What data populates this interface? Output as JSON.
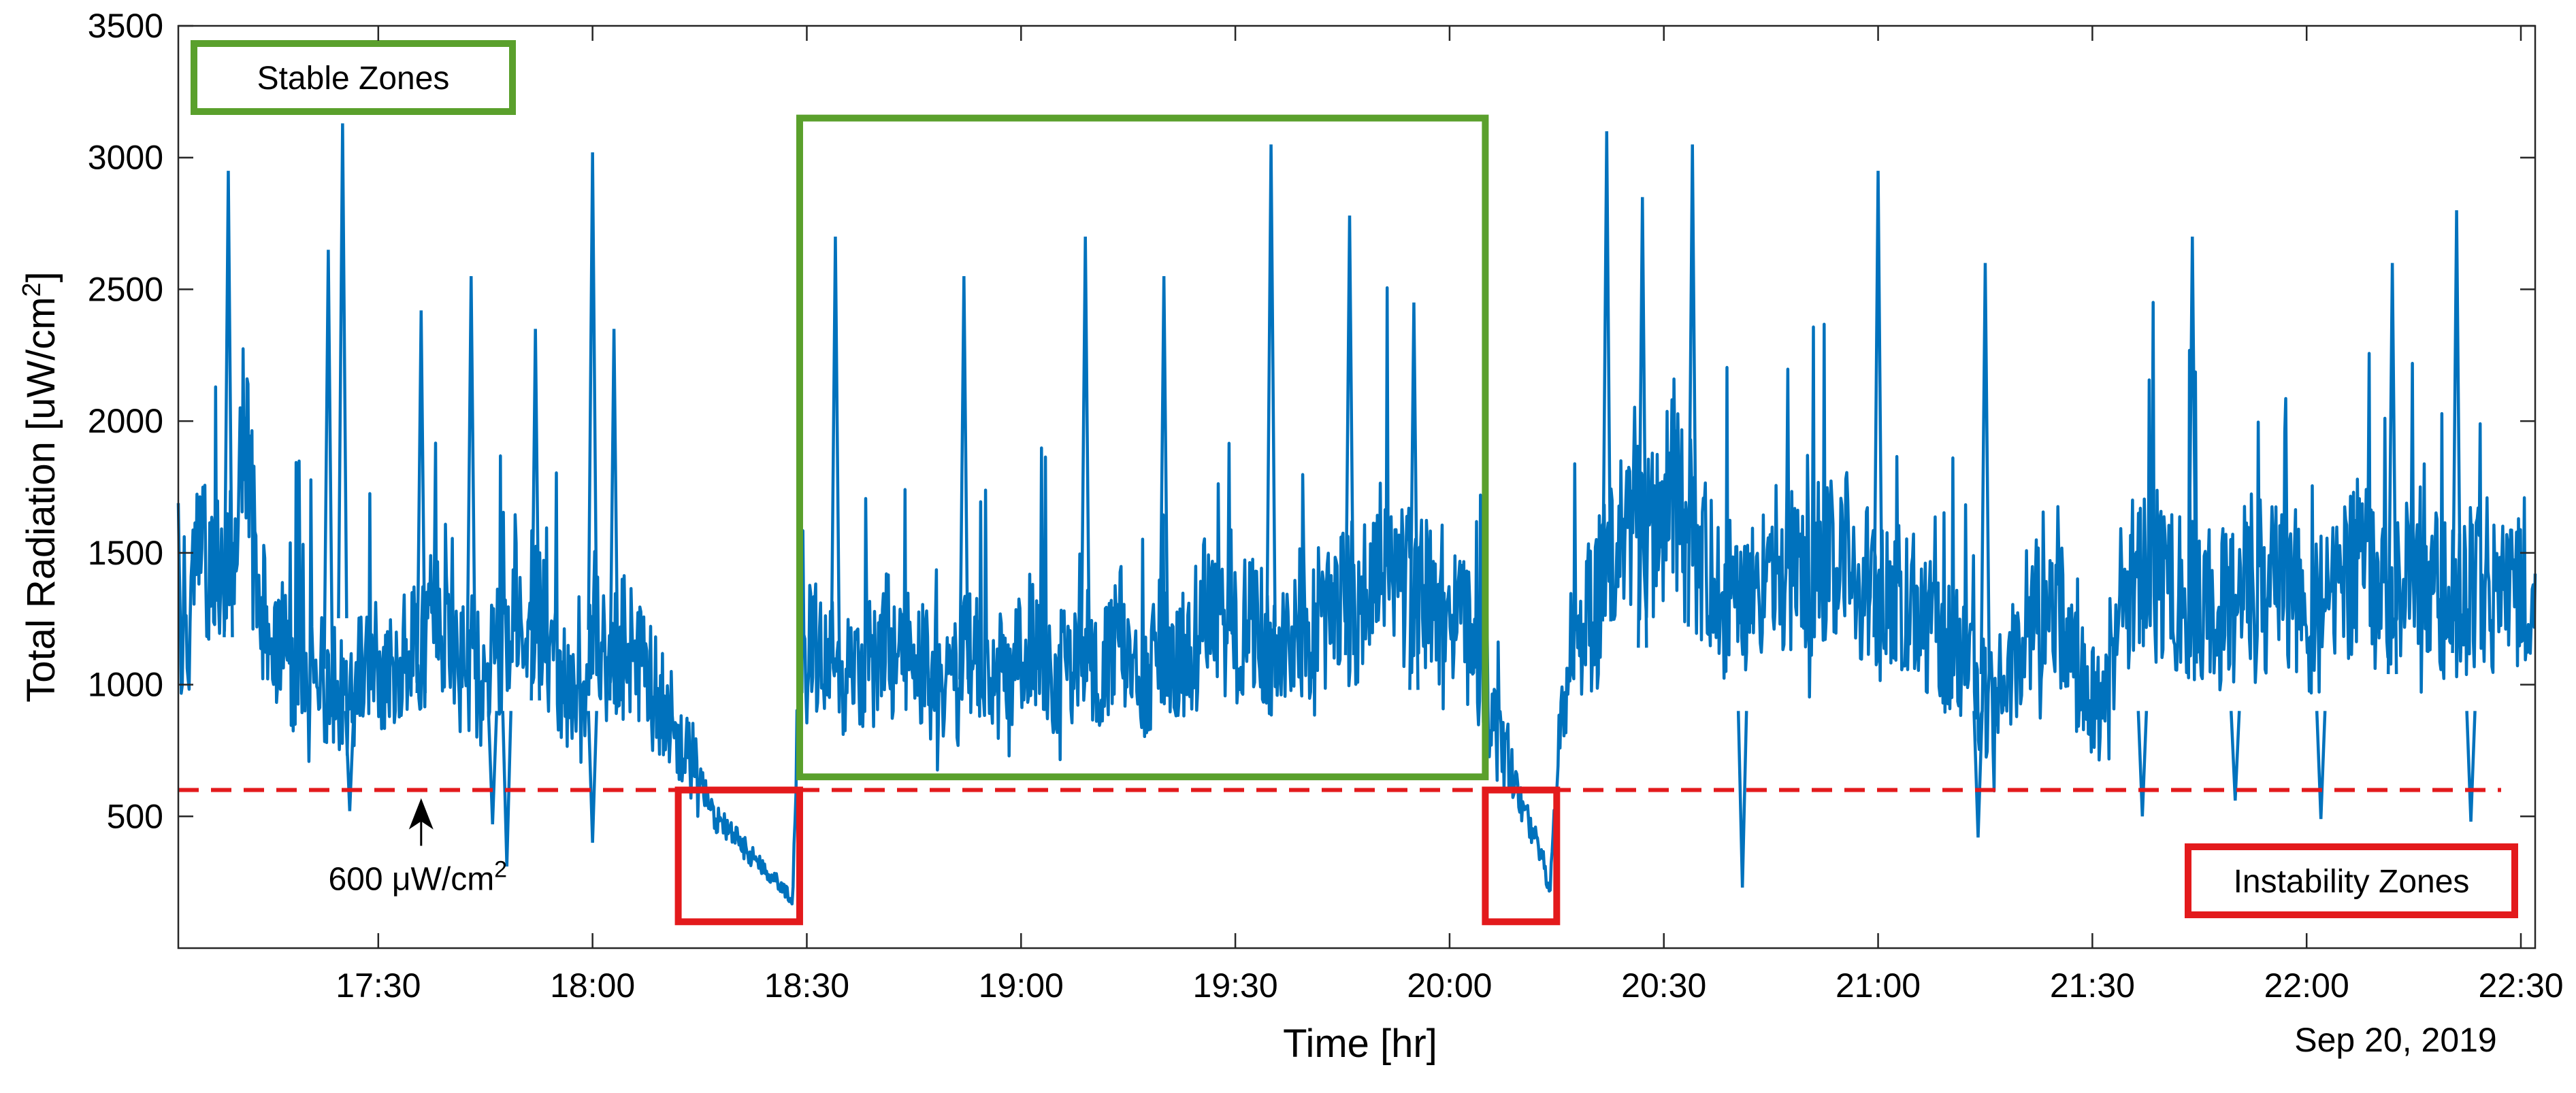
{
  "chart_data": {
    "type": "line",
    "title": "",
    "xlabel": "Time [hr]",
    "ylabel": "Total Radiation [uW/cm",
    "ylabel_superscript": "2",
    "ylabel_suffix": "]",
    "date_label": "Sep 20, 2019",
    "x_unit": "clock time (hh:mm), Sep 20, 2019",
    "xlim": [
      "17:02",
      "22:32"
    ],
    "ylim": [
      0,
      3500
    ],
    "x_ticks": [
      "17:30",
      "18:00",
      "18:30",
      "19:00",
      "19:30",
      "20:00",
      "20:30",
      "21:00",
      "21:30",
      "22:00",
      "22:30"
    ],
    "y_ticks": [
      500,
      1000,
      1500,
      2000,
      2500,
      3000,
      3500
    ],
    "grid": false,
    "series": [
      {
        "name": "",
        "color": "#0072BD",
        "x": [
          "17:02",
          "17:05",
          "17:08",
          "17:11",
          "17:14",
          "17:17",
          "17:20",
          "17:23",
          "17:26",
          "17:29",
          "17:32",
          "17:35",
          "17:38",
          "17:41",
          "17:44",
          "17:47",
          "17:50",
          "17:53",
          "17:56",
          "17:59",
          "18:00",
          "18:02",
          "18:05",
          "18:08",
          "18:11",
          "18:14",
          "18:17",
          "18:20",
          "18:23",
          "18:26",
          "18:28",
          "18:29",
          "18:32",
          "18:35",
          "18:38",
          "18:41",
          "18:44",
          "18:47",
          "18:50",
          "18:53",
          "18:56",
          "18:59",
          "19:02",
          "19:05",
          "19:08",
          "19:11",
          "19:14",
          "19:17",
          "19:20",
          "19:23",
          "19:26",
          "19:29",
          "19:32",
          "19:35",
          "19:38",
          "19:41",
          "19:44",
          "19:47",
          "19:50",
          "19:53",
          "19:56",
          "19:59",
          "20:02",
          "20:04",
          "20:05",
          "20:07",
          "20:10",
          "20:13",
          "20:14",
          "20:16",
          "20:19",
          "20:22",
          "20:25",
          "20:28",
          "20:31",
          "20:34",
          "20:37",
          "20:40",
          "20:43",
          "20:46",
          "20:49",
          "20:52",
          "20:55",
          "20:58",
          "21:01",
          "21:04",
          "21:07",
          "21:10",
          "21:13",
          "21:16",
          "21:19",
          "21:22",
          "21:25",
          "21:28",
          "21:31",
          "21:34",
          "21:37",
          "21:40",
          "21:43",
          "21:46",
          "21:49",
          "21:52",
          "21:55",
          "21:58",
          "22:01",
          "22:04",
          "22:07",
          "22:10",
          "22:13",
          "22:16",
          "22:19",
          "22:22",
          "22:25",
          "22:28",
          "22:31"
        ],
        "y": [
          1200,
          1500,
          1400,
          1900,
          1250,
          1100,
          1050,
          1000,
          950,
          1100,
          1000,
          1150,
          1250,
          1050,
          1100,
          1150,
          1400,
          1200,
          1000,
          900,
          1250,
          1100,
          1150,
          1000,
          850,
          700,
          500,
          420,
          330,
          250,
          180,
          1100,
          1150,
          1000,
          1050,
          1150,
          1100,
          1050,
          950,
          1150,
          1000,
          1100,
          1200,
          1050,
          1150,
          1100,
          1250,
          1000,
          1200,
          1050,
          1300,
          1150,
          1250,
          1100,
          1300,
          1200,
          1350,
          1250,
          1500,
          1400,
          1350,
          1300,
          1200,
          1100,
          1000,
          800,
          550,
          350,
          200,
          1050,
          1200,
          1450,
          1650,
          1500,
          1700,
          1550,
          1350,
          1300,
          1400,
          1500,
          1350,
          1450,
          1550,
          1400,
          1300,
          1350,
          1250,
          1150,
          1050,
          900,
          1100,
          1300,
          1250,
          1050,
          900,
          1300,
          1450,
          1400,
          1350,
          1250,
          1300,
          1400,
          1350,
          1400,
          1250,
          1300,
          1500,
          1350,
          1400,
          1450,
          1300,
          1350,
          1400,
          1300,
          1450
        ],
        "peaks": [
          {
            "x": "17:09",
            "y": 2950
          },
          {
            "x": "17:23",
            "y": 2650
          },
          {
            "x": "17:25",
            "y": 3130
          },
          {
            "x": "17:36",
            "y": 2420
          },
          {
            "x": "17:43",
            "y": 2550
          },
          {
            "x": "17:52",
            "y": 2350
          },
          {
            "x": "18:00",
            "y": 3020
          },
          {
            "x": "18:03",
            "y": 2350
          },
          {
            "x": "18:34",
            "y": 2700
          },
          {
            "x": "18:52",
            "y": 2550
          },
          {
            "x": "19:09",
            "y": 2700
          },
          {
            "x": "19:20",
            "y": 2550
          },
          {
            "x": "19:35",
            "y": 3050
          },
          {
            "x": "19:46",
            "y": 2780
          },
          {
            "x": "19:55",
            "y": 2450
          },
          {
            "x": "20:22",
            "y": 3100
          },
          {
            "x": "20:27",
            "y": 2850
          },
          {
            "x": "20:34",
            "y": 3050
          },
          {
            "x": "21:00",
            "y": 2950
          },
          {
            "x": "21:15",
            "y": 2600
          },
          {
            "x": "21:44",
            "y": 2700
          },
          {
            "x": "22:12",
            "y": 2600
          },
          {
            "x": "22:21",
            "y": 2800
          }
        ],
        "dips": [
          {
            "x": "17:26",
            "y": 520
          },
          {
            "x": "17:46",
            "y": 470
          },
          {
            "x": "17:48",
            "y": 310
          },
          {
            "x": "18:00",
            "y": 400
          },
          {
            "x": "20:41",
            "y": 230
          },
          {
            "x": "21:14",
            "y": 420
          },
          {
            "x": "21:37",
            "y": 500
          },
          {
            "x": "21:50",
            "y": 560
          },
          {
            "x": "22:02",
            "y": 490
          },
          {
            "x": "22:23",
            "y": 480
          }
        ]
      }
    ],
    "reference_line": {
      "y": 600,
      "color": "#E31A1C",
      "style": "dashed"
    },
    "annotations": [
      {
        "text": "600 μW/cm",
        "superscript": "2",
        "arrow_to": {
          "x": "17:36",
          "y": 600
        }
      }
    ],
    "zones": [
      {
        "label": "Stable Zones",
        "color": "#5AA02C",
        "rect": {
          "x0": "18:29",
          "x1": "20:05",
          "y0": 650,
          "y1": 3150
        }
      },
      {
        "label": "Instability Zones",
        "color": "#E31A1C",
        "rect": {
          "x0": "18:12",
          "x1": "18:29",
          "y0": 100,
          "y1": 600
        }
      },
      {
        "label": "",
        "color": "#E31A1C",
        "rect": {
          "x0": "20:05",
          "x1": "20:15",
          "y0": 100,
          "y1": 600
        }
      }
    ],
    "legend_boxes": [
      {
        "text": "Stable Zones",
        "color": "#5AA02C",
        "placement": "top-left"
      },
      {
        "text": "Instability Zones",
        "color": "#E31A1C",
        "placement": "bottom-right"
      }
    ]
  }
}
